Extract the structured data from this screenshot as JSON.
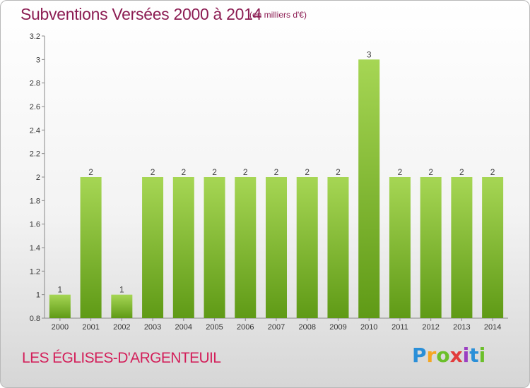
{
  "header": {
    "title": "Subventions Versées 2000 à 2014",
    "subtitle": "(en milliers d'€)"
  },
  "footer": {
    "commune": "LES ÉGLISES-D'ARGENTEUIL",
    "logo": "Proxiti"
  },
  "colors": {
    "bar_top": "#a6d654",
    "bar_bottom": "#5f9a16",
    "title": "#8c1d53",
    "commune": "#d31f5a"
  },
  "chart_data": {
    "type": "bar",
    "title": "Subventions Versées 2000 à 2014",
    "subtitle": "(en milliers d'€)",
    "categories": [
      "2000",
      "2001",
      "2002",
      "2003",
      "2004",
      "2005",
      "2006",
      "2007",
      "2008",
      "2009",
      "2010",
      "2011",
      "2012",
      "2013",
      "2014"
    ],
    "values": [
      1,
      2,
      1,
      2,
      2,
      2,
      2,
      2,
      2,
      2,
      3,
      2,
      2,
      2,
      2
    ],
    "data_labels": [
      "1",
      "2",
      "1",
      "2",
      "2",
      "2",
      "2",
      "2",
      "2",
      "2",
      "3",
      "2",
      "2",
      "2",
      "2"
    ],
    "ylim": [
      0.8,
      3.2
    ],
    "yticks": [
      "0.8",
      "1",
      "1.2",
      "1.4",
      "1.6",
      "1.8",
      "2",
      "2.2",
      "2.4",
      "2.6",
      "2.8",
      "3",
      "3.2"
    ],
    "grid": false,
    "xlabel": "",
    "ylabel": ""
  }
}
